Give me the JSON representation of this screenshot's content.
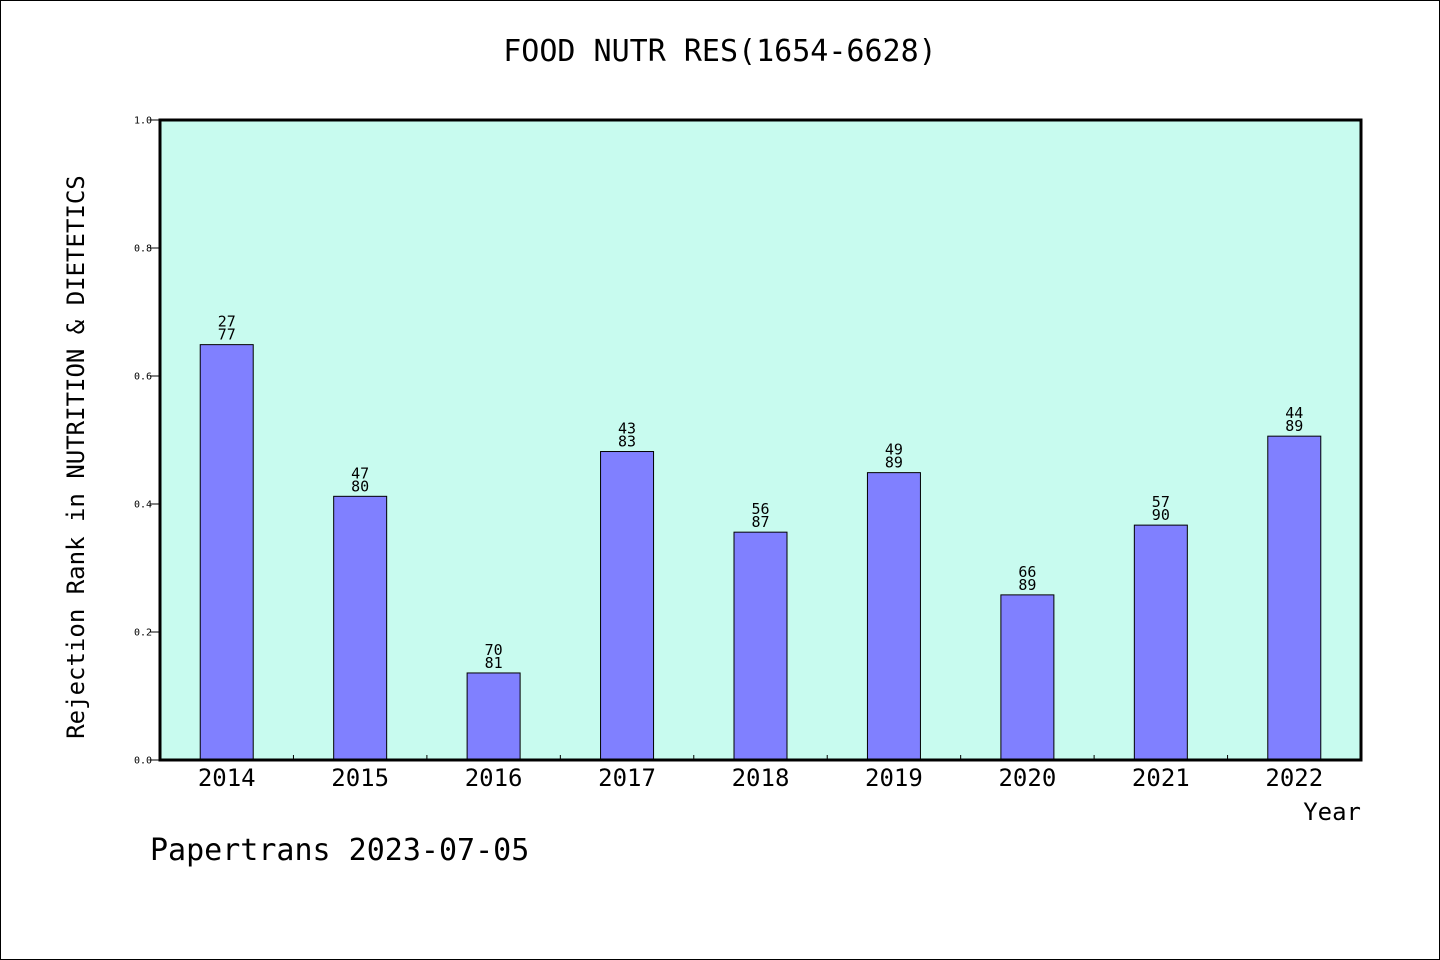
{
  "title": "FOOD NUTR RES(1654-6628)",
  "footer": "Papertrans 2023-07-05",
  "colors": {
    "plot_background": "#c8fbef",
    "bar_fill": "#8080ff",
    "bar_stroke": "#000000",
    "frame": "#000000"
  },
  "chart_data": {
    "type": "bar",
    "title": "FOOD NUTR RES(1654-6628)",
    "xlabel": "Year",
    "ylabel": "Rejection Rank in NUTRITION & DIETETICS",
    "ylim": [
      0,
      1
    ],
    "yticks": [
      "0.0",
      "0.2",
      "0.4",
      "0.6",
      "0.8",
      "1.0"
    ],
    "grid": false,
    "categories": [
      "2014",
      "2015",
      "2016",
      "2017",
      "2018",
      "2019",
      "2020",
      "2021",
      "2022"
    ],
    "values": [
      0.649,
      0.412,
      0.136,
      0.482,
      0.356,
      0.449,
      0.258,
      0.367,
      0.506
    ],
    "labels_top": [
      "27",
      "47",
      "70",
      "43",
      "56",
      "49",
      "66",
      "57",
      "44"
    ],
    "labels_bottom": [
      "77",
      "80",
      "81",
      "83",
      "87",
      "89",
      "89",
      "90",
      "89"
    ]
  }
}
